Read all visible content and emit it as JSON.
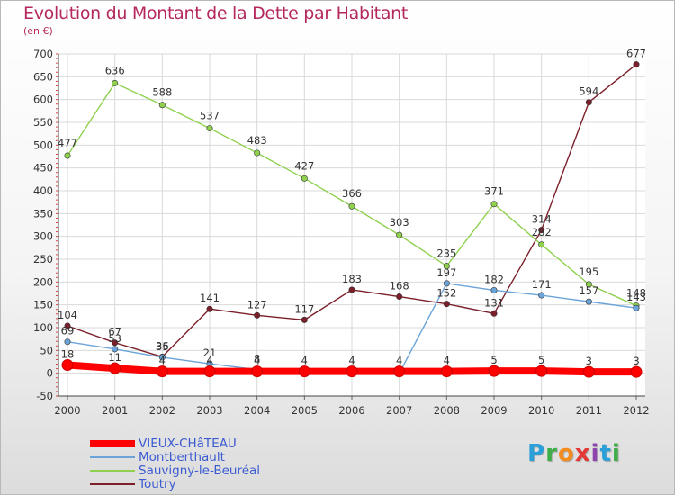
{
  "header": {
    "title": "Evolution du Montant de la Dette par Habitant",
    "unit": "(en €)"
  },
  "logo": {
    "text": "Proxiti",
    "letters": [
      "P",
      "r",
      "o",
      "x",
      "i",
      "t",
      "i"
    ],
    "colors": [
      "#2a9fd8",
      "#3fae49",
      "#f28c1e",
      "#e53935",
      "#8e44ad",
      "#2a9fd8",
      "#3fae49"
    ]
  },
  "chart_data": {
    "type": "line",
    "title": "Evolution du Montant de la Dette par Habitant",
    "ylabel": "(en €)",
    "xlabel": "",
    "x": [
      "2000",
      "2001",
      "2002",
      "2003",
      "2004",
      "2005",
      "2006",
      "2007",
      "2008",
      "2009",
      "2010",
      "2011",
      "2012"
    ],
    "ylim": [
      -50,
      700
    ],
    "yticks": [
      "-50",
      "0",
      "50",
      "100",
      "150",
      "200",
      "250",
      "300",
      "350",
      "400",
      "450",
      "500",
      "550",
      "600",
      "650",
      "700"
    ],
    "grid": true,
    "legend_position": "bottom-left",
    "series": [
      {
        "name": "VIEUX-CHâTEAU",
        "color": "#ff0000",
        "values": [
          18,
          11,
          4,
          4,
          4,
          4,
          4,
          4,
          4,
          5,
          5,
          3,
          3
        ],
        "labels": [
          "18",
          "11",
          "4",
          "4",
          "4",
          "4",
          "4",
          "4",
          "4",
          "5",
          "5",
          "3",
          "3"
        ]
      },
      {
        "name": "Montberthault",
        "color": "#6ba4d8",
        "values": [
          69,
          53,
          35,
          21,
          8,
          0,
          0,
          0,
          197,
          182,
          171,
          157,
          143
        ],
        "labels": [
          "69",
          "53",
          "35",
          "21",
          "8",
          "",
          "",
          "",
          "197",
          "182",
          "171",
          "157",
          "143"
        ]
      },
      {
        "name": "Sauvigny-le-Beuréal",
        "color": "#8fd14f",
        "values": [
          477,
          636,
          588,
          537,
          483,
          427,
          366,
          303,
          235,
          371,
          282,
          195,
          148
        ],
        "labels": [
          "477",
          "636",
          "588",
          "537",
          "483",
          "427",
          "366",
          "303",
          "235",
          "371",
          "282",
          "195",
          "148"
        ]
      },
      {
        "name": "Toutry",
        "color": "#7b1f2a",
        "values": [
          104,
          67,
          36,
          141,
          127,
          117,
          183,
          168,
          152,
          131,
          314,
          594,
          677
        ],
        "labels": [
          "104",
          "67",
          "36",
          "141",
          "127",
          "117",
          "183",
          "168",
          "152",
          "131",
          "314",
          "594",
          "677"
        ]
      }
    ]
  }
}
